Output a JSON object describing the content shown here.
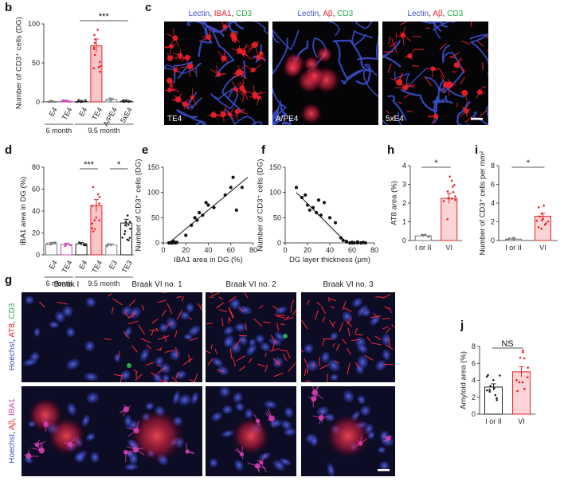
{
  "panels": {
    "b": "b",
    "c": "c",
    "d": "d",
    "e": "e",
    "f": "f",
    "g": "g",
    "h": "h",
    "i": "i",
    "j": "j"
  },
  "colors": {
    "red": "#e8242b",
    "lightred": "#f3a9ab",
    "magenta": "#d63fb1",
    "blue": "#3a4fc4",
    "green": "#2aa84a",
    "gray": "#888888",
    "black": "#111111"
  },
  "micro": {
    "c": [
      {
        "parts": [
          [
            "Lectin",
            "#4052c8"
          ],
          [
            ", ",
            "#222"
          ],
          [
            "IBA1",
            "#e8242b"
          ],
          [
            ", ",
            "#222"
          ],
          [
            "CD3",
            "#2aa84a"
          ]
        ],
        "corner": "TE4",
        "scalebar": false
      },
      {
        "parts": [
          [
            "Lectin",
            "#4052c8"
          ],
          [
            ", ",
            "#222"
          ],
          [
            "Aβ",
            "#e8242b"
          ],
          [
            ", ",
            "#222"
          ],
          [
            "CD3",
            "#2aa84a"
          ]
        ],
        "corner": "A/PE4",
        "scalebar": false
      },
      {
        "parts": [
          [
            "Lectin",
            "#4052c8"
          ],
          [
            ", ",
            "#222"
          ],
          [
            "Aβ",
            "#e8242b"
          ],
          [
            ", ",
            "#222"
          ],
          [
            "CD3",
            "#2aa84a"
          ]
        ],
        "corner": "5xE4",
        "scalebar": true
      }
    ],
    "g_columns": [
      "Braak I",
      "Braak VI no. 1",
      "Braak VI no. 2",
      "Braak VI no. 3"
    ],
    "g_row1_label": [
      [
        "Hoechst",
        "#4052c8"
      ],
      [
        ", ",
        "#222"
      ],
      [
        "AT8",
        "#e8242b"
      ],
      [
        ", ",
        "#222"
      ],
      [
        "CD3",
        "#2aa84a"
      ]
    ],
    "g_row2_label": [
      [
        "Hoechst",
        "#4052c8"
      ],
      [
        ", ",
        "#222"
      ],
      [
        "Aβ",
        "#e8242b"
      ],
      [
        ", ",
        "#222"
      ],
      [
        "IBA1",
        "#d63fb1"
      ]
    ]
  },
  "chart_data": [
    {
      "id": "b",
      "type": "bar",
      "ylabel": "Number of CD3⁺ cells (DG)",
      "ylim": [
        0,
        100
      ],
      "yticks": [
        0,
        50,
        100
      ],
      "categories": [
        "E4",
        "TE4",
        "E4",
        "TE4",
        "A/PE4",
        "5xE4"
      ],
      "values": [
        0.5,
        1,
        0.5,
        72,
        3,
        1
      ],
      "groups": [
        {
          "label": "6 month",
          "span": [
            0,
            1
          ]
        },
        {
          "label": "9.5 month",
          "span": [
            2,
            5
          ]
        }
      ],
      "significance": [
        {
          "label": "***",
          "span": [
            2,
            5
          ]
        }
      ]
    },
    {
      "id": "d",
      "type": "bar",
      "ylabel": "IBA1 area in DG (%)",
      "ylim": [
        0,
        80
      ],
      "yticks": [
        0,
        20,
        40,
        60,
        80
      ],
      "categories": [
        "E4",
        "TE4",
        "E4",
        "TE4",
        "E3",
        "TE3"
      ],
      "values": [
        10,
        9.5,
        10,
        45,
        9,
        29
      ],
      "groups": [
        {
          "label": "6 month",
          "span": [
            0,
            1
          ]
        },
        {
          "label": "9.5 month",
          "span": [
            2,
            5
          ]
        }
      ],
      "significance": [
        {
          "label": "***",
          "span": [
            2,
            3
          ]
        },
        {
          "label": "*",
          "span": [
            4,
            5
          ]
        }
      ]
    },
    {
      "id": "e",
      "type": "scatter",
      "xlabel": "IBA1 area in DG (%)",
      "ylabel": "Number of CD3⁺ cells (DG)",
      "xlim": [
        0,
        80
      ],
      "ylim": [
        0,
        150
      ],
      "xticks": [
        0,
        20,
        40,
        60,
        80
      ],
      "yticks": [
        0,
        50,
        100,
        150
      ],
      "x": [
        5,
        6,
        7,
        8,
        9,
        10,
        11,
        12,
        8,
        9,
        20,
        25,
        28,
        30,
        32,
        35,
        40,
        45,
        38,
        55,
        60,
        62,
        65,
        70
      ],
      "y": [
        0,
        0,
        1,
        0,
        2,
        1,
        0,
        1,
        0,
        3,
        15,
        35,
        50,
        45,
        60,
        55,
        75,
        70,
        80,
        95,
        110,
        130,
        65,
        110
      ],
      "fit": [
        [
          5,
          0
        ],
        [
          75,
          130
        ]
      ]
    },
    {
      "id": "f",
      "type": "scatter",
      "xlabel": "DG layer thickness (μm)",
      "ylabel": "Number of CD3⁺ cells (DG)",
      "xlim": [
        0,
        80
      ],
      "ylim": [
        0,
        150
      ],
      "xticks": [
        0,
        20,
        40,
        60,
        80
      ],
      "yticks": [
        0,
        50,
        100,
        150
      ],
      "x": [
        10,
        15,
        18,
        20,
        22,
        25,
        28,
        30,
        32,
        35,
        40,
        45,
        50,
        52,
        55,
        58,
        60,
        62,
        65,
        68,
        70,
        72,
        55,
        60,
        65
      ],
      "y": [
        110,
        90,
        95,
        75,
        65,
        70,
        60,
        85,
        55,
        80,
        50,
        40,
        10,
        5,
        2,
        0,
        1,
        0,
        2,
        0,
        1,
        0,
        3,
        1,
        0
      ],
      "fit": [
        [
          10,
          100
        ],
        [
          55,
          0
        ]
      ]
    },
    {
      "id": "h",
      "type": "bar",
      "ylabel": "AT8 area (%)",
      "ylim": [
        0,
        4
      ],
      "yticks": [
        0,
        1,
        2,
        3,
        4
      ],
      "categories": [
        "I or II",
        "VI"
      ],
      "values": [
        0.25,
        2.25
      ],
      "significance": [
        {
          "label": "*",
          "span": [
            0,
            1
          ]
        }
      ]
    },
    {
      "id": "i",
      "type": "bar",
      "ylabel": "Number of CD3⁺ cells per mm²",
      "ylim": [
        0,
        8
      ],
      "yticks": [
        0,
        2,
        4,
        6,
        8
      ],
      "categories": [
        "I or II",
        "VI"
      ],
      "values": [
        0.15,
        2.6
      ],
      "significance": [
        {
          "label": "*",
          "span": [
            0,
            1
          ]
        }
      ]
    },
    {
      "id": "j",
      "type": "bar",
      "ylabel": "Amyloid area (%)",
      "ylim": [
        0,
        8
      ],
      "yticks": [
        0,
        2,
        4,
        6,
        8
      ],
      "categories": [
        "I or II",
        "VI"
      ],
      "values": [
        3.2,
        5.0
      ],
      "significance": [
        {
          "label": "NS",
          "span": [
            0,
            1
          ]
        }
      ]
    }
  ]
}
